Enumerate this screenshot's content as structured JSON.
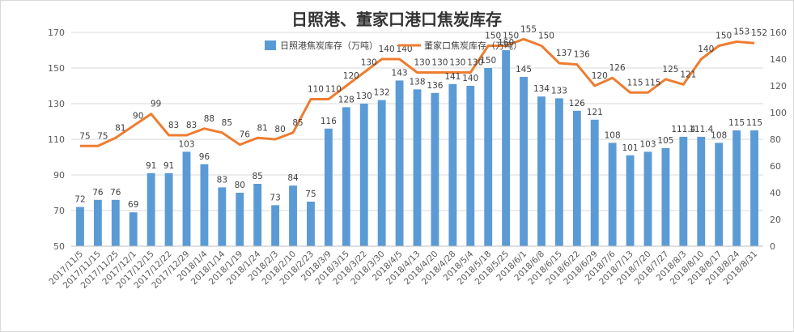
{
  "chart_data": {
    "type": "bar",
    "title": "日照港、董家口港口焦炭库存",
    "categories": [
      "2017/11/5",
      "2017/11/15",
      "2017/11/25",
      "2017/12/1",
      "2017/12/15",
      "2017/12/22",
      "2017/12/29",
      "2018/1/4",
      "2018/1/14",
      "2018/1/19",
      "2018/1/24",
      "2018/2/3",
      "2018/2/10",
      "2018/2/23",
      "2018/3/9",
      "2018/3/15",
      "2018/3/22",
      "2018/3/30",
      "2018/4/5",
      "2018/4/13",
      "2018/4/20",
      "2018/4/28",
      "2018/5/4",
      "2018/5/18",
      "2018/5/25",
      "2018/6/1",
      "2018/6/8",
      "2018/6/15",
      "2018/6/22",
      "2018/6/29",
      "2018/7/6",
      "2018/7/13",
      "2018/7/20",
      "2018/7/27",
      "2018/8/3",
      "2018/8/10",
      "2018/8/17",
      "2018/8/24",
      "2018/8/31"
    ],
    "series": [
      {
        "name": "日照港焦炭库存（万吨）",
        "type": "bar",
        "axis": "left",
        "color": "#5b9bd5",
        "values": [
          72,
          76,
          76,
          69,
          91,
          91,
          103,
          96,
          83,
          80,
          85,
          73,
          84,
          75,
          116,
          128,
          130,
          132,
          143,
          138,
          136,
          141,
          140,
          150,
          160,
          145,
          134,
          133,
          126,
          121,
          108,
          101,
          103,
          105,
          111.4,
          111.4,
          108,
          115,
          115
        ],
        "labels": [
          "72",
          "76",
          "76",
          "69",
          "91",
          "91",
          "103",
          "96",
          "83",
          "80",
          "85",
          "73",
          "84",
          "75",
          "116",
          "128",
          "130",
          "132",
          "143",
          "138",
          "136",
          "141",
          "140",
          "150",
          "160",
          "145",
          "134",
          "133",
          "126",
          "121",
          "108",
          "101",
          "103",
          "105",
          "111.4",
          "111.4",
          "108",
          "115",
          "115"
        ]
      },
      {
        "name": "董家口焦炭库存（万吨）",
        "type": "line",
        "axis": "right",
        "color": "#ed7d31",
        "values": [
          75,
          75,
          81,
          90,
          99,
          83,
          83,
          88,
          85,
          76,
          81,
          80,
          85,
          110,
          110,
          120,
          130,
          140,
          140,
          130,
          130,
          130,
          130,
          150,
          150,
          155,
          150,
          137,
          136,
          120,
          126,
          115,
          115,
          125,
          121,
          140,
          150,
          153,
          152
        ],
        "labels": [
          "75",
          "75",
          "81",
          "90",
          "99",
          "83",
          "83",
          "88",
          "85",
          "76",
          "81",
          "80",
          "85",
          "110",
          "110",
          "120",
          "130",
          "140",
          "140",
          "130",
          "130",
          "130",
          "130",
          "150",
          "150",
          "155",
          "150",
          "137",
          "136",
          "120",
          "126",
          "115",
          "115",
          "125",
          "121",
          "140",
          "150",
          "153",
          "152"
        ]
      }
    ],
    "y_left": {
      "min": 50,
      "max": 170,
      "ticks": [
        "50",
        "70",
        "90",
        "110",
        "130",
        "150",
        "170"
      ]
    },
    "y_right": {
      "min": 0,
      "max": 160,
      "ticks": [
        "0",
        "20",
        "40",
        "60",
        "80",
        "100",
        "120",
        "140",
        "160"
      ]
    },
    "grid": true,
    "legend_position": "top"
  }
}
